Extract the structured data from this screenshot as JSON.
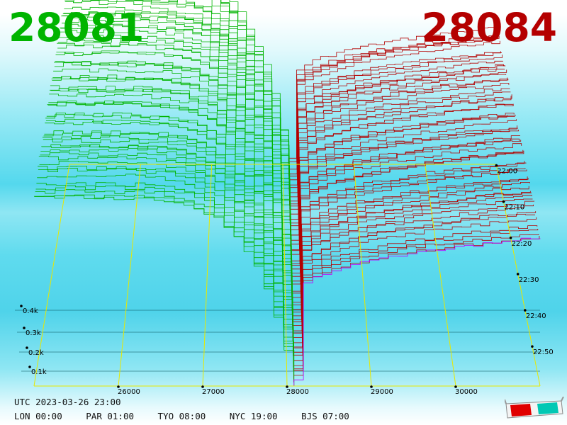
{
  "header": {
    "bid_price": "28081",
    "ask_price": "28084"
  },
  "footer": {
    "utc": "UTC 2023-03-26 23:00",
    "zones": [
      "LON 00:00",
      "PAR 01:00",
      "TYO 08:00",
      "NYC 19:00",
      "BJS 07:00"
    ]
  },
  "icons": {
    "glasses": "3d-glasses-icon"
  },
  "colors": {
    "bid": "#00b400",
    "ask": "#b40000",
    "frame": "#e8e800",
    "latest_ask": "#c000ff"
  },
  "chart_data": {
    "type": "3d-depth",
    "x_ticks": [
      "26000",
      "27000",
      "28000",
      "29000",
      "30000"
    ],
    "x_tick_values": [
      26000,
      27000,
      28000,
      29000,
      30000
    ],
    "x_range": [
      25000,
      31000
    ],
    "y_ticks": [
      "0.1k",
      "0.2k",
      "0.3k",
      "0.4k"
    ],
    "y_tick_values": [
      100,
      200,
      300,
      400
    ],
    "time_ticks": [
      "22:00",
      "22:10",
      "22:20",
      "22:30",
      "22:40",
      "22:50"
    ],
    "time_tick_minutes": [
      0,
      10,
      20,
      30,
      40,
      50
    ],
    "time_range": [
      0,
      60
    ],
    "mid_price": 28082,
    "snapshots": 60
  }
}
